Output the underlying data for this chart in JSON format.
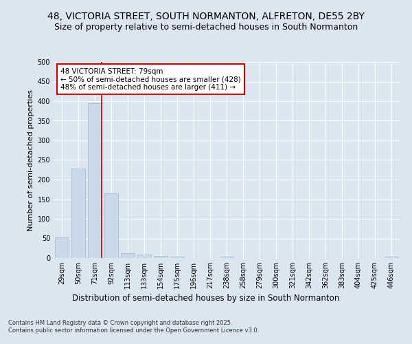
{
  "title1": "48, VICTORIA STREET, SOUTH NORMANTON, ALFRETON, DE55 2BY",
  "title2": "Size of property relative to semi-detached houses in South Normanton",
  "xlabel": "Distribution of semi-detached houses by size in South Normanton",
  "ylabel": "Number of semi-detached properties",
  "categories": [
    "29sqm",
    "50sqm",
    "71sqm",
    "92sqm",
    "113sqm",
    "133sqm",
    "154sqm",
    "175sqm",
    "196sqm",
    "217sqm",
    "238sqm",
    "258sqm",
    "279sqm",
    "300sqm",
    "321sqm",
    "342sqm",
    "362sqm",
    "383sqm",
    "404sqm",
    "425sqm",
    "446sqm"
  ],
  "values": [
    53,
    228,
    395,
    165,
    12,
    8,
    6,
    4,
    0,
    0,
    4,
    0,
    0,
    0,
    0,
    0,
    0,
    0,
    0,
    0,
    4
  ],
  "bar_color": "#c9d9e8",
  "bar_edge_color": "#a0b8cc",
  "vline_x_index": 2,
  "vline_color": "#cc0000",
  "annotation_text": "48 VICTORIA STREET: 79sqm\n← 50% of semi-detached houses are smaller (428)\n48% of semi-detached houses are larger (411) →",
  "annotation_box_color": "#ffffff",
  "annotation_box_edge": "#cc0000",
  "ylim": [
    0,
    500
  ],
  "yticks": [
    0,
    50,
    100,
    150,
    200,
    250,
    300,
    350,
    400,
    450,
    500
  ],
  "footer1": "Contains HM Land Registry data © Crown copyright and database right 2025.",
  "footer2": "Contains public sector information licensed under the Open Government Licence v3.0.",
  "bg_color": "#dce6f0",
  "plot_bg_color": "#dce6f0",
  "title1_fontsize": 10,
  "title2_fontsize": 9,
  "xlabel_fontsize": 8.5,
  "ylabel_fontsize": 8,
  "annotation_fontsize": 7.5,
  "footer_fontsize": 6,
  "tick_fontsize": 7
}
